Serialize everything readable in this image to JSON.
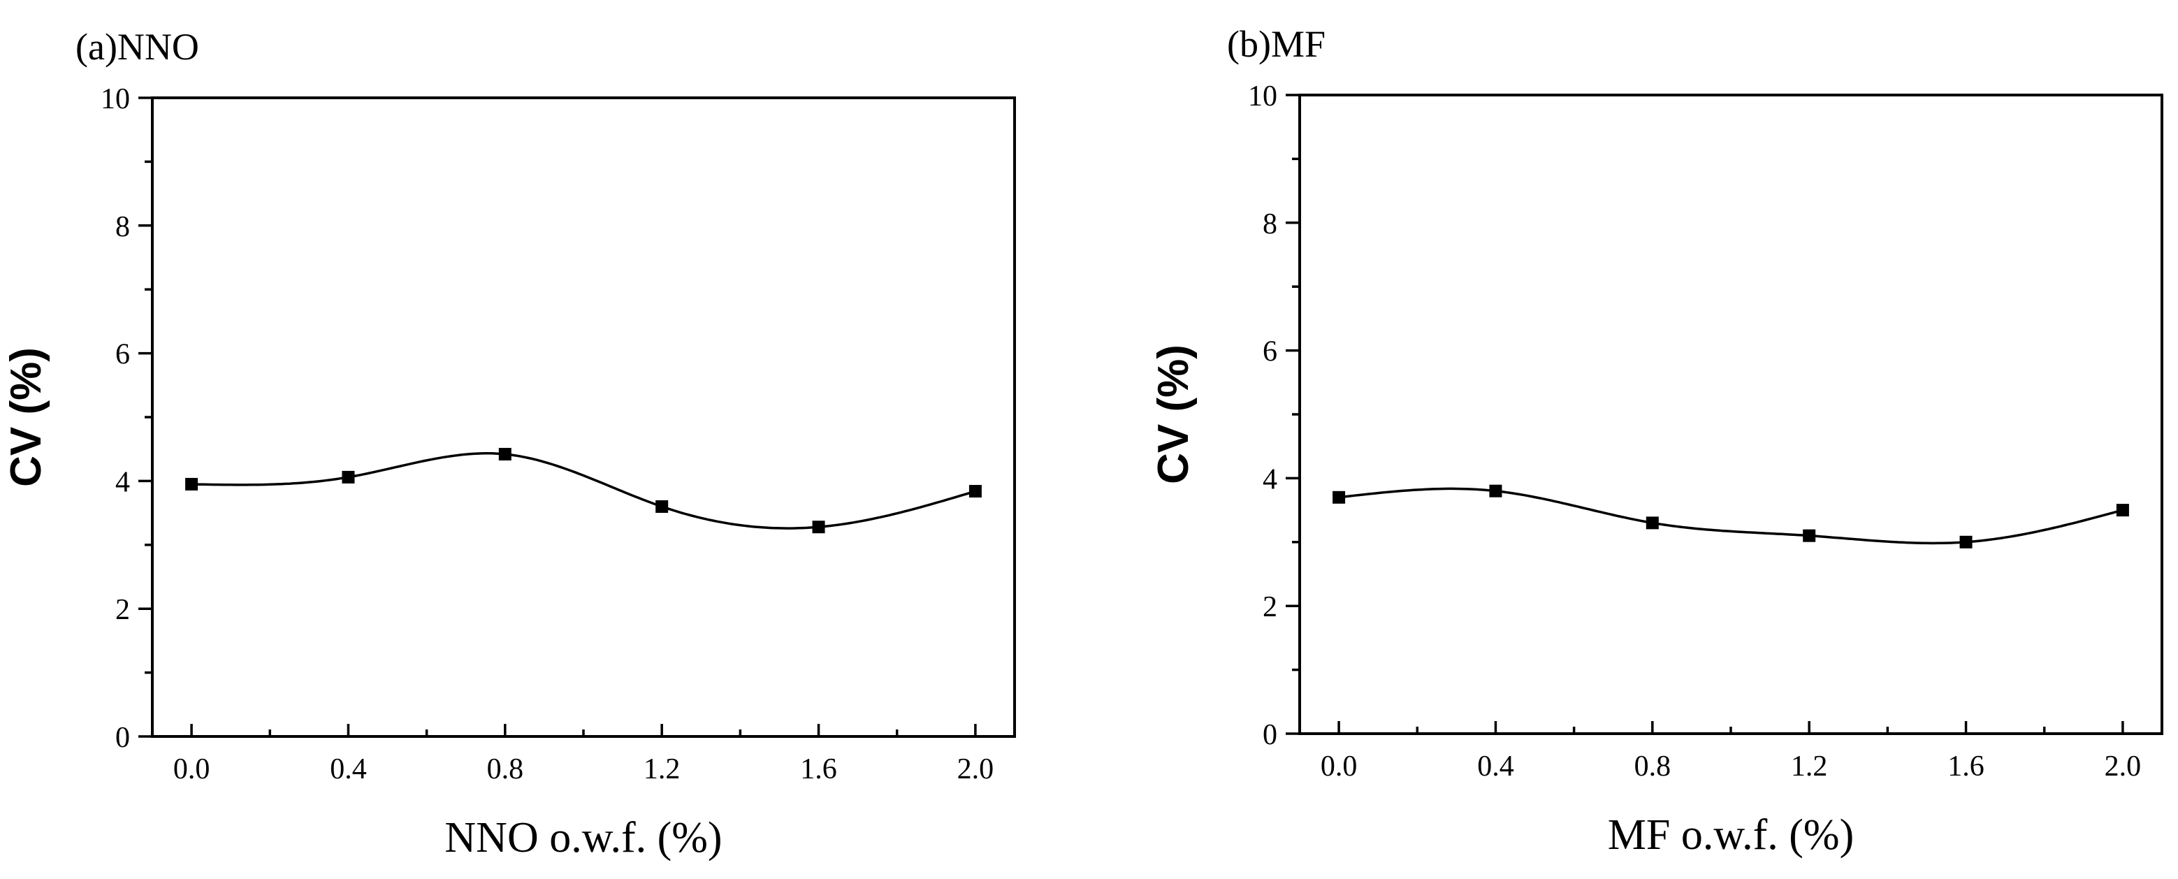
{
  "chart_data": [
    {
      "type": "scatter",
      "panel_label": "(a)NNO",
      "xlabel": "NNO o.w.f. (%)",
      "ylabel": "CV (%)",
      "x": [
        0.0,
        0.4,
        0.8,
        1.2,
        1.6,
        2.0
      ],
      "y": [
        3.95,
        4.06,
        4.42,
        3.6,
        3.28,
        3.84
      ],
      "fit_curve": true,
      "xlim": [
        -0.1,
        2.1
      ],
      "ylim": [
        0,
        10
      ],
      "xticks": [
        "0.0",
        "0.4",
        "0.8",
        "1.2",
        "1.6",
        "2.0"
      ],
      "yticks": [
        "0",
        "2",
        "4",
        "6",
        "8",
        "10"
      ]
    },
    {
      "type": "scatter",
      "panel_label": "(b)MF",
      "xlabel": "MF o.w.f. (%)",
      "ylabel": "CV (%)",
      "x": [
        0.0,
        0.4,
        0.8,
        1.2,
        1.6,
        2.0
      ],
      "y": [
        3.7,
        3.8,
        3.3,
        3.1,
        3.0,
        3.5
      ],
      "fit_curve": true,
      "xlim": [
        -0.1,
        2.1
      ],
      "ylim": [
        0,
        10
      ],
      "xticks": [
        "0.0",
        "0.4",
        "0.8",
        "1.2",
        "1.6",
        "2.0"
      ],
      "yticks": [
        "0",
        "2",
        "4",
        "6",
        "8",
        "10"
      ]
    }
  ]
}
